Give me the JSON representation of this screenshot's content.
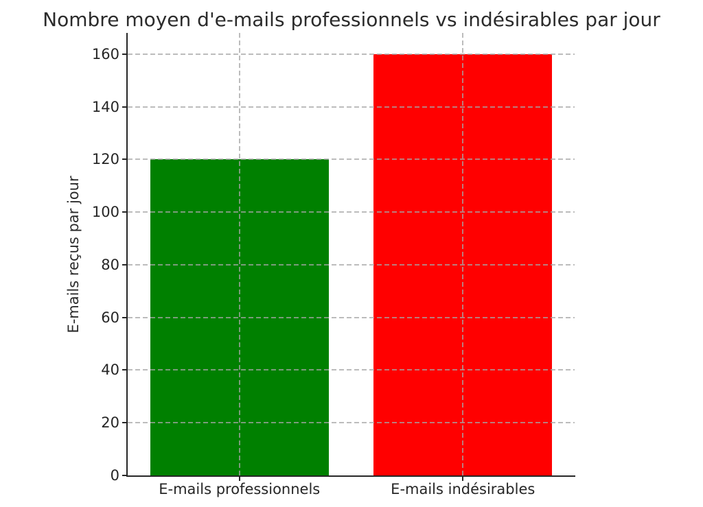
{
  "chart_data": {
    "type": "bar",
    "title": "Nombre moyen d'e-mails professionnels vs indésirables par jour",
    "xlabel": "",
    "ylabel": "E-mails reçus par jour",
    "categories": [
      "E-mails professionnels",
      "E-mails indésirables"
    ],
    "values": [
      120,
      160
    ],
    "bar_colors": [
      "#008000",
      "#ff0000"
    ],
    "yticks": [
      0,
      20,
      40,
      60,
      80,
      100,
      120,
      140,
      160
    ],
    "ylim": [
      0,
      168
    ],
    "bar_width_fraction": 0.8,
    "grid": true,
    "grid_style": "dashed",
    "grid_over_bars": true,
    "grid_color": "#a5a5a5",
    "spine_color": "#262626",
    "text_color": "#2b2b2b",
    "background_color": "#ffffff",
    "legend": "none"
  }
}
